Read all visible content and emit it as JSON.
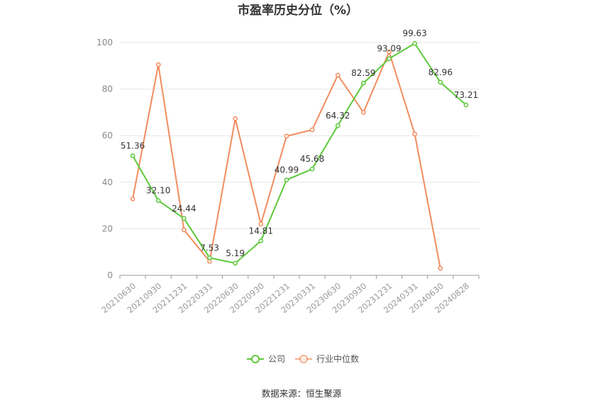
{
  "chart_data": {
    "type": "line",
    "title": "市盈率历史分位（%）",
    "categories": [
      "20210630",
      "20210930",
      "20211231",
      "20220331",
      "20220630",
      "20220930",
      "20221231",
      "20230331",
      "20230630",
      "20230930",
      "20231231",
      "20240331",
      "20240630",
      "20240828"
    ],
    "ylim": [
      0,
      100
    ],
    "yticks": [
      0,
      20,
      40,
      60,
      80,
      100
    ],
    "grid": true,
    "legend_position": "bottom",
    "series": [
      {
        "name": "公司",
        "color": "#5cc93a",
        "values": [
          51.36,
          32.1,
          24.44,
          7.53,
          5.19,
          14.81,
          40.99,
          45.68,
          64.32,
          82.59,
          93.09,
          99.63,
          82.96,
          73.21
        ],
        "labels": [
          "51.36",
          "32.10",
          "24.44",
          "7.53",
          "5.19",
          "14.81",
          "40.99",
          "45.68",
          "64.32",
          "82.59",
          "93.09",
          "99.63",
          "82.96",
          "73.21"
        ]
      },
      {
        "name": "行业中位数",
        "color": "#f28c5f",
        "values": [
          32.8,
          90.5,
          19.5,
          6.0,
          67.3,
          22.0,
          59.8,
          62.5,
          86.0,
          70.0,
          96.0,
          60.7,
          3.0,
          null
        ]
      }
    ]
  },
  "source": "数据来源：恒生聚源"
}
